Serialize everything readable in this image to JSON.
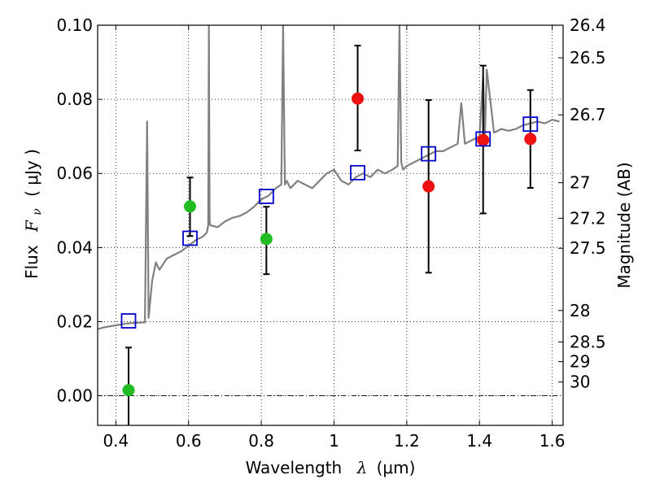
{
  "chart_data": {
    "type": "scatter",
    "xlabel_text": "Wavelength",
    "xlabel_symbol": "λ",
    "xlabel_unit": "(μm)",
    "ylabel_prefix": "Flux",
    "ylabel_symbol": "F",
    "ylabel_sub": "ν",
    "ylabel_unit": "( μJy )",
    "y2label": "Magnitude (AB)",
    "xlim": [
      0.35,
      1.63
    ],
    "ylim": [
      -0.008,
      0.1
    ],
    "grid": true,
    "x_ticks": [
      0.4,
      0.6,
      0.8,
      1.0,
      1.2,
      1.4,
      1.6
    ],
    "x_tick_labels": [
      "0.4",
      "0.6",
      "0.8",
      "1",
      "1.2",
      "1.4",
      "1.6"
    ],
    "y_ticks": [
      0.0,
      0.02,
      0.04,
      0.06,
      0.08,
      0.1
    ],
    "y_tick_labels": [
      "0.00",
      "0.02",
      "0.04",
      "0.06",
      "0.08",
      "0.10"
    ],
    "mag_ticks": [
      {
        "flux": 0.1,
        "label": "26.4"
      },
      {
        "flux": 0.0912,
        "label": "26.5"
      },
      {
        "flux": 0.0758,
        "label": "26.7"
      },
      {
        "flux": 0.0575,
        "label": "27"
      },
      {
        "flux": 0.0479,
        "label": "27.2"
      },
      {
        "flux": 0.0398,
        "label": "27.5"
      },
      {
        "flux": 0.023,
        "label": "28"
      },
      {
        "flux": 0.0145,
        "label": "28.5"
      },
      {
        "flux": 0.0092,
        "label": "29"
      },
      {
        "flux": 0.0037,
        "label": "30"
      }
    ],
    "series": [
      {
        "name": "model_spectrum",
        "kind": "line",
        "color": "#808080",
        "x": [
          0.35,
          0.37,
          0.4,
          0.43,
          0.46,
          0.48,
          0.486,
          0.49,
          0.493,
          0.5,
          0.51,
          0.52,
          0.54,
          0.56,
          0.58,
          0.6,
          0.62,
          0.64,
          0.65,
          0.654,
          0.656,
          0.658,
          0.66,
          0.68,
          0.7,
          0.72,
          0.74,
          0.76,
          0.78,
          0.8,
          0.82,
          0.84,
          0.855,
          0.86,
          0.865,
          0.87,
          0.88,
          0.9,
          0.92,
          0.94,
          0.96,
          0.98,
          1.0,
          1.02,
          1.04,
          1.06,
          1.08,
          1.1,
          1.12,
          1.14,
          1.16,
          1.175,
          1.18,
          1.185,
          1.19,
          1.2,
          1.22,
          1.24,
          1.26,
          1.28,
          1.3,
          1.32,
          1.34,
          1.35,
          1.36,
          1.38,
          1.4,
          1.41,
          1.415,
          1.42,
          1.44,
          1.46,
          1.48,
          1.5,
          1.52,
          1.54,
          1.56,
          1.58,
          1.6,
          1.62
        ],
        "values": [
          0.018,
          0.0185,
          0.019,
          0.0195,
          0.0197,
          0.0198,
          0.074,
          0.021,
          0.024,
          0.031,
          0.036,
          0.034,
          0.037,
          0.038,
          0.039,
          0.0405,
          0.042,
          0.043,
          0.044,
          0.046,
          0.1,
          0.047,
          0.046,
          0.0455,
          0.047,
          0.048,
          0.0485,
          0.0495,
          0.051,
          0.053,
          0.054,
          0.056,
          0.057,
          0.1,
          0.057,
          0.058,
          0.056,
          0.058,
          0.057,
          0.056,
          0.058,
          0.06,
          0.061,
          0.058,
          0.057,
          0.059,
          0.06,
          0.059,
          0.061,
          0.06,
          0.061,
          0.062,
          0.1,
          0.063,
          0.061,
          0.062,
          0.063,
          0.064,
          0.065,
          0.066,
          0.066,
          0.067,
          0.068,
          0.079,
          0.068,
          0.069,
          0.07,
          0.086,
          0.07,
          0.088,
          0.071,
          0.072,
          0.0715,
          0.072,
          0.073,
          0.0735,
          0.074,
          0.0735,
          0.0745,
          0.074
        ]
      },
      {
        "name": "model_photometry",
        "kind": "open-square",
        "color": "#0000cc",
        "x": [
          0.435,
          0.604,
          0.814,
          1.065,
          1.26,
          1.41,
          1.54
        ],
        "values": [
          0.0202,
          0.0425,
          0.0538,
          0.0602,
          0.0653,
          0.0693,
          0.0733
        ]
      },
      {
        "name": "acs_photometry",
        "kind": "filled-circle",
        "color": "#22bb22",
        "x": [
          0.435,
          0.604,
          0.814
        ],
        "values": [
          0.0015,
          0.0511,
          0.0423
        ],
        "err_low": [
          0.014,
          0.008,
          0.0095
        ],
        "err_high": [
          0.0115,
          0.0078,
          0.0087
        ]
      },
      {
        "name": "wfc3_photometry",
        "kind": "filled-circle",
        "color": "#ee1111",
        "x": [
          1.065,
          1.26,
          1.41,
          1.54
        ],
        "values": [
          0.0802,
          0.0565,
          0.069,
          0.0693
        ],
        "err_low": [
          0.014,
          0.0233,
          0.0198,
          0.0132
        ],
        "err_high": [
          0.0143,
          0.0233,
          0.0201,
          0.0132
        ]
      }
    ]
  }
}
